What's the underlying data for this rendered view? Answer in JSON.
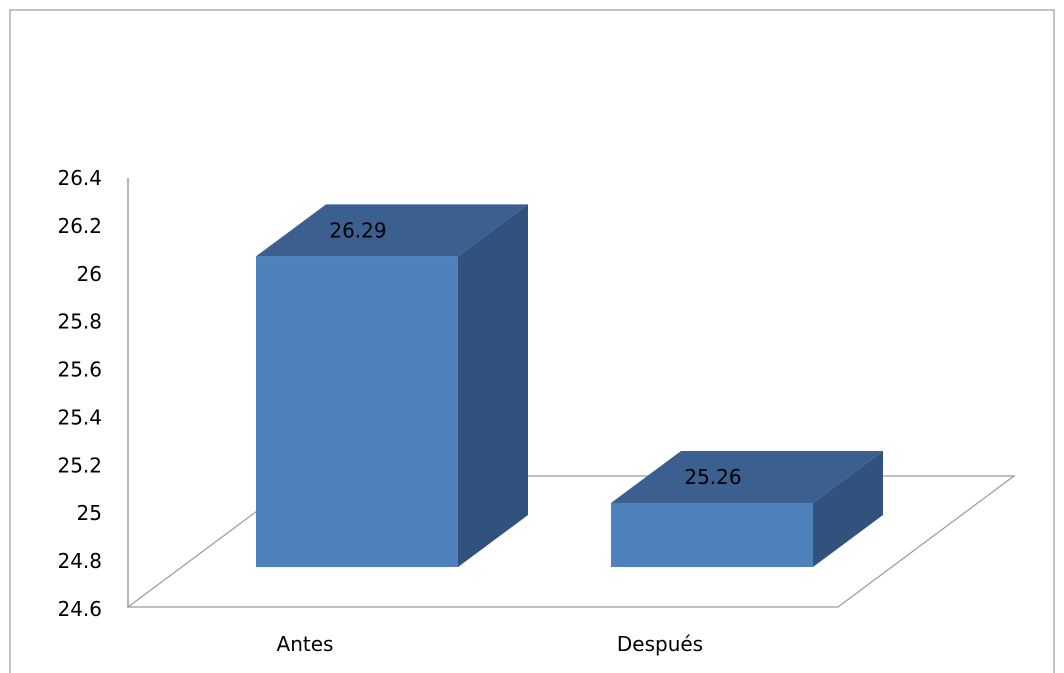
{
  "colors": {
    "bar_front": "#4f81bd",
    "bar_top": "#3b5f8f",
    "bar_side": "#31527c",
    "axis_line": "#868686",
    "floor_line": "#9a9a9a",
    "frame": "#868686"
  },
  "chart_data": {
    "type": "bar",
    "style": "3d-column",
    "categories": [
      "Antes",
      "Después"
    ],
    "values": [
      26.29,
      25.26
    ],
    "data_labels": [
      "26.29",
      "25.26"
    ],
    "yticks": [
      "24.6",
      "24.8",
      "25",
      "25.2",
      "25.4",
      "25.6",
      "25.8",
      "26",
      "26.2",
      "26.4"
    ],
    "ylim": [
      24.6,
      26.4
    ],
    "title": "",
    "xlabel": "",
    "ylabel": "",
    "grid": false,
    "legend": "none"
  }
}
